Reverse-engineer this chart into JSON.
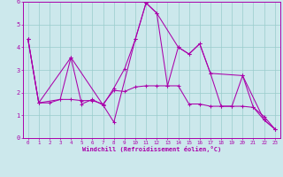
{
  "xlabel": "Windchill (Refroidissement éolien,°C)",
  "xlim": [
    -0.5,
    23.5
  ],
  "ylim": [
    0,
    6
  ],
  "xtick_labels": [
    "0",
    "1",
    "2",
    "3",
    "4",
    "5",
    "6",
    "7",
    "8",
    "9",
    "10",
    "11",
    "12",
    "13",
    "14",
    "15",
    "16",
    "17",
    "18",
    "19",
    "20",
    "21",
    "22",
    "23"
  ],
  "xtick_vals": [
    0,
    1,
    2,
    3,
    4,
    5,
    6,
    7,
    8,
    9,
    10,
    11,
    12,
    13,
    14,
    15,
    16,
    17,
    18,
    19,
    20,
    21,
    22,
    23
  ],
  "ytick_vals": [
    0,
    1,
    2,
    3,
    4,
    5,
    6
  ],
  "bg_color": "#cce8ec",
  "line_color": "#aa00aa",
  "grid_color": "#99cccc",
  "lines": [
    {
      "x": [
        0,
        1,
        4,
        7,
        8,
        10,
        11,
        12,
        14,
        15,
        16,
        17,
        20,
        22,
        23
      ],
      "y": [
        4.35,
        1.55,
        3.55,
        1.45,
        0.7,
        4.35,
        5.95,
        5.5,
        4.0,
        3.7,
        4.15,
        2.85,
        2.75,
        0.8,
        0.4
      ]
    },
    {
      "x": [
        0,
        1,
        2,
        3,
        4,
        5,
        6,
        7,
        8,
        9,
        10,
        11,
        12,
        13,
        14,
        15,
        16,
        17,
        18,
        19,
        20,
        21,
        22,
        23
      ],
      "y": [
        4.35,
        1.55,
        1.55,
        1.7,
        1.7,
        1.65,
        1.65,
        1.5,
        2.1,
        2.05,
        2.25,
        2.3,
        2.3,
        2.3,
        2.3,
        1.5,
        1.5,
        1.4,
        1.4,
        1.4,
        1.4,
        1.35,
        0.95,
        0.4
      ]
    },
    {
      "x": [
        0,
        1,
        3,
        4,
        5,
        6,
        7,
        8,
        9,
        10,
        11,
        12,
        13,
        14,
        15,
        16,
        17,
        18,
        19,
        20,
        21,
        22,
        23
      ],
      "y": [
        4.35,
        1.55,
        1.7,
        3.55,
        1.5,
        1.7,
        1.45,
        2.2,
        3.05,
        4.35,
        5.95,
        5.5,
        2.3,
        4.0,
        3.7,
        4.15,
        2.85,
        1.4,
        1.4,
        2.75,
        1.35,
        0.8,
        0.4
      ]
    }
  ]
}
